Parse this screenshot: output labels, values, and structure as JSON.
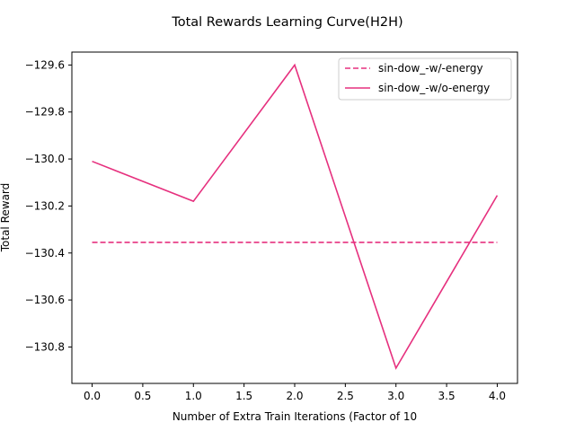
{
  "chart_data": {
    "type": "line",
    "title": "Total Rewards Learning Curve(H2H)",
    "xlabel": "Number of Extra Train Iterations (Factor of 10",
    "ylabel": "Total Reward",
    "xlim": [
      -0.2,
      4.2
    ],
    "ylim": [
      -130.955,
      -129.545
    ],
    "x_ticks": [
      0.0,
      0.5,
      1.0,
      1.5,
      2.0,
      2.5,
      3.0,
      3.5,
      4.0
    ],
    "x_tick_labels": [
      "0.0",
      "0.5",
      "1.0",
      "1.5",
      "2.0",
      "2.5",
      "3.0",
      "3.5",
      "4.0"
    ],
    "y_ticks": [
      -129.6,
      -129.8,
      -130.0,
      -130.2,
      -130.4,
      -130.6,
      -130.8
    ],
    "y_tick_labels": [
      "−129.6",
      "−129.8",
      "−130.0",
      "−130.2",
      "−130.4",
      "−130.6",
      "−130.8"
    ],
    "grid": false,
    "legend_position": "top-right",
    "x": [
      0,
      1,
      2,
      3,
      4
    ],
    "series": [
      {
        "name": "sin-dow_-w/-energy",
        "style": "dashed",
        "color": "#e6307e",
        "values": [
          -130.355,
          -130.355,
          -130.355,
          -130.355,
          -130.355
        ]
      },
      {
        "name": "sin-dow_-w/o-energy",
        "style": "solid",
        "color": "#e6307e",
        "values": [
          -130.01,
          -130.18,
          -129.6,
          -130.89,
          -130.155
        ]
      }
    ]
  }
}
